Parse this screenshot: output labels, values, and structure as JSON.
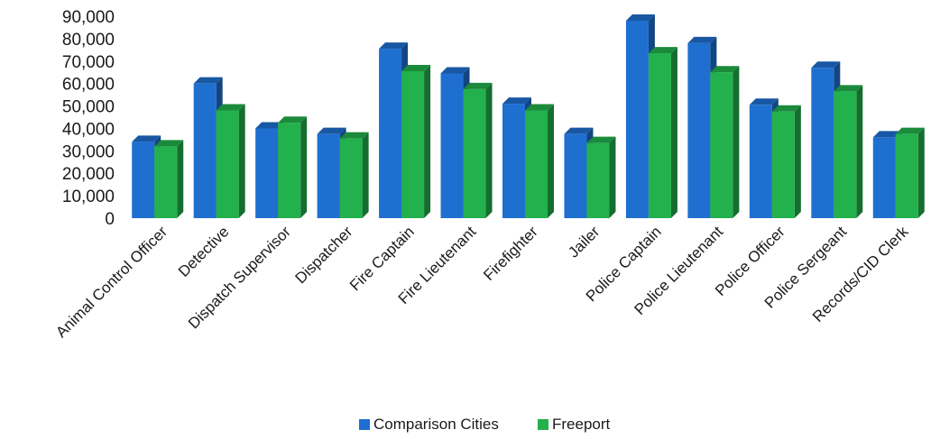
{
  "chart_data": {
    "type": "bar",
    "title": "",
    "xlabel": "",
    "ylabel": "",
    "ylim": [
      0,
      90000
    ],
    "yticks": [
      0,
      10000,
      20000,
      30000,
      40000,
      50000,
      60000,
      70000,
      80000,
      90000
    ],
    "ytick_labels": [
      "0",
      "10,000",
      "20,000",
      "30,000",
      "40,000",
      "50,000",
      "60,000",
      "70,000",
      "80,000",
      "90,000"
    ],
    "grid": false,
    "legend_position": "bottom",
    "style": "3d-clustered-column",
    "categories": [
      "Animal Control Officer",
      "Detective",
      "Dispatch Supervisor",
      "Dispatcher",
      "Fire Captain",
      "Fire Lieutenant",
      "Firefighter",
      "Jailer",
      "Police Captain",
      "Police Lieutenant",
      "Police Officer",
      "Police Sergeant",
      "Records/CID Clerk"
    ],
    "series": [
      {
        "name": "Comparison Cities",
        "color": "#1f6fd1",
        "values": [
          34000,
          60000,
          40000,
          37500,
          75500,
          64500,
          51000,
          37500,
          88000,
          78000,
          50500,
          67000,
          36000
        ]
      },
      {
        "name": "Freeport",
        "color": "#22b14c",
        "values": [
          32000,
          48000,
          42500,
          35500,
          65500,
          57500,
          48000,
          33500,
          73500,
          65000,
          47500,
          56500,
          37500
        ]
      }
    ]
  }
}
